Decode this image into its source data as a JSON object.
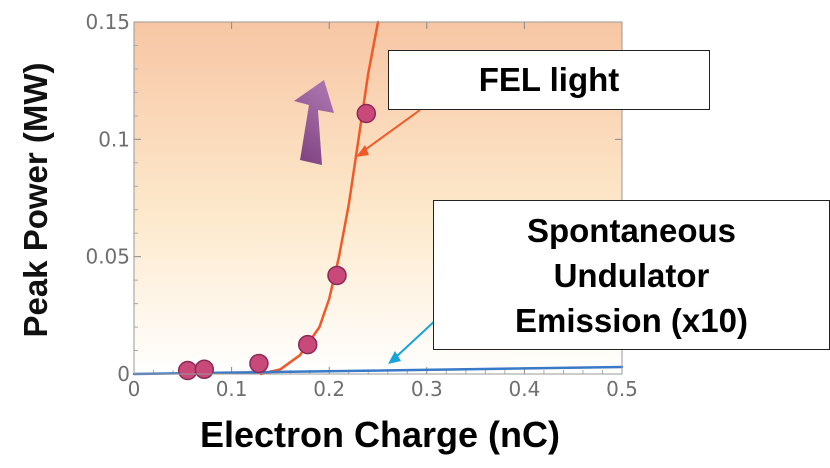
{
  "chart_data": {
    "type": "scatter",
    "xlabel": "Electron Charge (nC)",
    "ylabel": "Peak Power (MW)",
    "xlim": [
      0,
      0.5
    ],
    "ylim": [
      0,
      0.15
    ],
    "xticks": [
      "0",
      "0.1",
      "0.2",
      "0.3",
      "0.4",
      "0.5"
    ],
    "yticks": [
      "0",
      "0.05",
      "0.1",
      "0.15"
    ],
    "grid": false,
    "series": [
      {
        "name": "FEL light",
        "kind": "points",
        "color": "#c03a6a",
        "x": [
          0.055,
          0.072,
          0.128,
          0.178,
          0.208,
          0.238
        ],
        "y": [
          0.0015,
          0.002,
          0.0045,
          0.0125,
          0.042,
          0.111
        ]
      },
      {
        "name": "FEL light",
        "kind": "line",
        "color": "#f05a28",
        "x": [
          0.13,
          0.15,
          0.17,
          0.19,
          0.2,
          0.21,
          0.22,
          0.23,
          0.24,
          0.25
        ],
        "y": [
          0.0,
          0.002,
          0.008,
          0.02,
          0.032,
          0.05,
          0.072,
          0.1,
          0.128,
          0.15
        ]
      },
      {
        "name": "Spontaneous Undulator Emission (x10)",
        "kind": "line",
        "color": "#3a78c8",
        "x": [
          0.0,
          0.5
        ],
        "y": [
          0.0,
          0.003
        ]
      }
    ],
    "annotations": [
      "FEL light",
      "Spontaneous Undulator Emission (x10)"
    ]
  },
  "labels": {
    "fel_light": "FEL light",
    "spont_line1": "Spontaneous",
    "spont_line2": "Undulator",
    "spont_line3": "Emission (x10)",
    "x_title": "Electron Charge (nC)",
    "y_title": "Peak Power (MW)"
  },
  "colors": {
    "bg_top": "#f7c6a4",
    "bg_bottom": "#ffffff",
    "arrow": "#8a4a86",
    "fel_pointer": "#f05a28",
    "spont_pointer": "#19a3d8"
  }
}
